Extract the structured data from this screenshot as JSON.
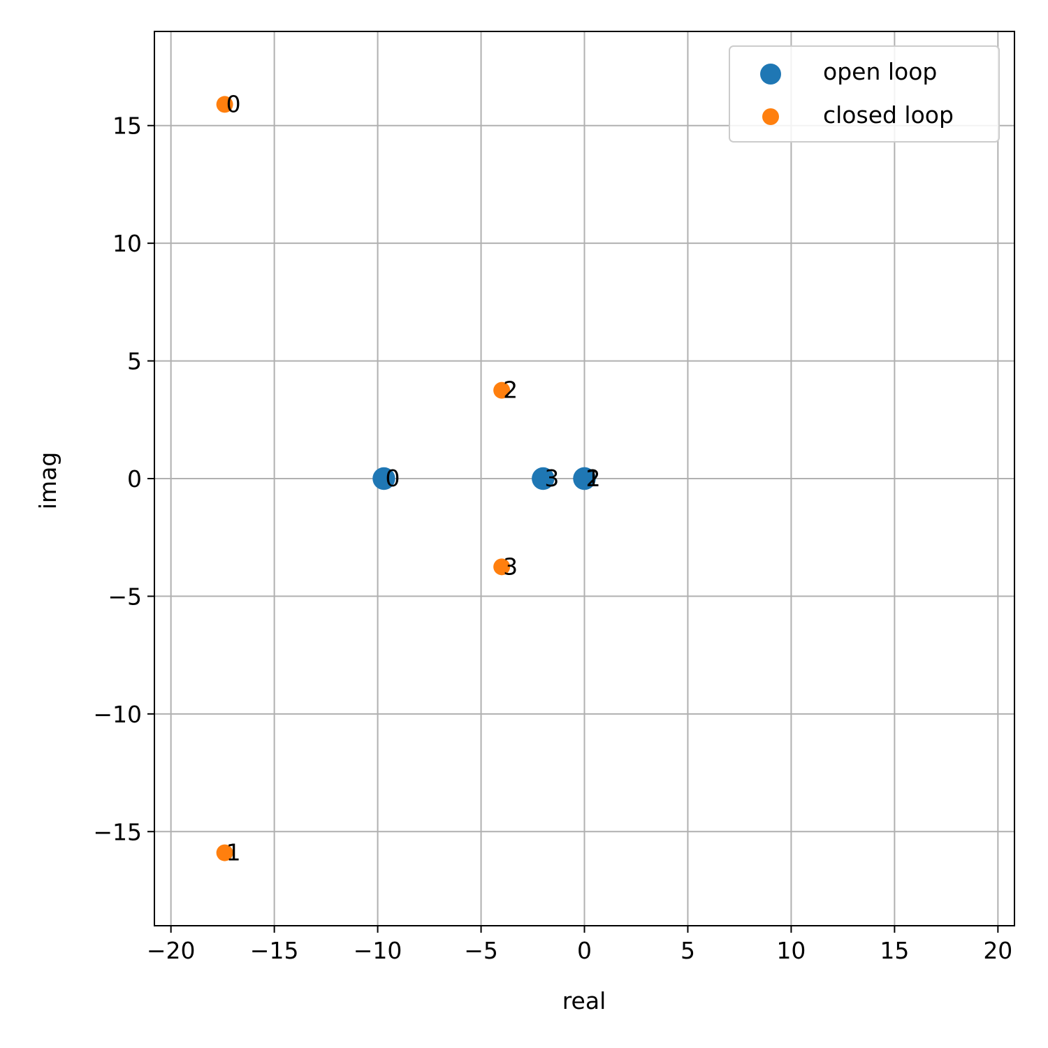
{
  "chart_data": {
    "type": "scatter",
    "title": "",
    "xlabel": "real",
    "ylabel": "imag",
    "xlim": [
      -20.8,
      20.8
    ],
    "ylim": [
      -19.0,
      19.0
    ],
    "x_ticks": [
      -20,
      -15,
      -10,
      -5,
      0,
      5,
      10,
      15,
      20
    ],
    "x_tick_labels": [
      "−20",
      "−15",
      "−10",
      "−5",
      "0",
      "5",
      "10",
      "15",
      "20"
    ],
    "y_ticks": [
      -15,
      -10,
      -5,
      0,
      5,
      10,
      15
    ],
    "y_tick_labels": [
      "−15",
      "−10",
      "−5",
      "0",
      "5",
      "10",
      "15"
    ],
    "grid": true,
    "legend_position": "top-right",
    "series": [
      {
        "name": "open loop",
        "color": "#1f77b4",
        "marker_scale": 1.35,
        "points": [
          {
            "x": -9.7,
            "y": 0.0,
            "label": "0"
          },
          {
            "x": 0.0,
            "y": 0.0,
            "label": "1"
          },
          {
            "x": 0.0,
            "y": 0.0,
            "label": "2"
          },
          {
            "x": -2.0,
            "y": 0.0,
            "label": "3"
          }
        ]
      },
      {
        "name": "closed loop",
        "color": "#ff7f0e",
        "marker_scale": 1.0,
        "points": [
          {
            "x": -17.4,
            "y": 15.9,
            "label": "0"
          },
          {
            "x": -17.4,
            "y": -15.9,
            "label": "1"
          },
          {
            "x": -4.0,
            "y": 3.75,
            "label": "2"
          },
          {
            "x": -4.0,
            "y": -3.75,
            "label": "3"
          }
        ]
      }
    ]
  }
}
